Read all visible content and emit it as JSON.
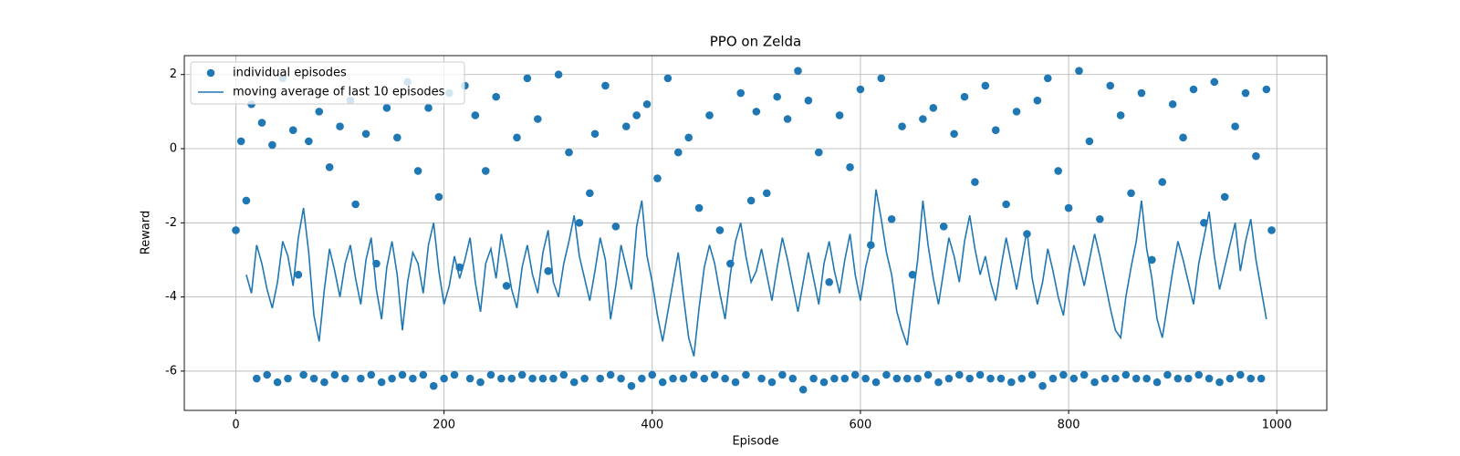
{
  "chart_data": {
    "type": "scatter",
    "title": "PPO on Zelda",
    "x_label": "Episode",
    "y_label": "Reward",
    "xlim": [
      -49.5,
      1048
    ],
    "ylim": [
      -7.06,
      2.51
    ],
    "xticks": [
      0,
      200,
      400,
      600,
      800,
      1000
    ],
    "yticks": [
      -6,
      -4,
      -2,
      0,
      2
    ],
    "grid": true,
    "legend": "upper left",
    "series": [
      {
        "name": "individual episodes",
        "mark": "scatter",
        "color": "#1f77b4",
        "x": [
          0,
          5,
          10,
          15,
          20,
          25,
          30,
          35,
          40,
          45,
          50,
          55,
          60,
          65,
          70,
          75,
          80,
          85,
          90,
          95,
          100,
          105,
          110,
          115,
          120,
          125,
          130,
          135,
          140,
          145,
          150,
          155,
          160,
          165,
          170,
          175,
          180,
          185,
          190,
          195,
          200,
          205,
          210,
          215,
          220,
          225,
          230,
          235,
          240,
          245,
          250,
          255,
          260,
          265,
          270,
          275,
          280,
          285,
          290,
          295,
          300,
          305,
          310,
          315,
          320,
          325,
          330,
          335,
          340,
          345,
          350,
          355,
          360,
          365,
          370,
          375,
          380,
          385,
          390,
          395,
          400,
          405,
          410,
          415,
          420,
          425,
          430,
          435,
          440,
          445,
          450,
          455,
          460,
          465,
          470,
          475,
          480,
          485,
          490,
          495,
          500,
          505,
          510,
          515,
          520,
          525,
          530,
          535,
          540,
          545,
          550,
          555,
          560,
          565,
          570,
          575,
          580,
          585,
          590,
          595,
          600,
          605,
          610,
          615,
          620,
          625,
          630,
          635,
          640,
          645,
          650,
          655,
          660,
          665,
          670,
          675,
          680,
          685,
          690,
          695,
          700,
          705,
          710,
          715,
          720,
          725,
          730,
          735,
          740,
          745,
          750,
          755,
          760,
          765,
          770,
          775,
          780,
          785,
          790,
          795,
          800,
          805,
          810,
          815,
          820,
          825,
          830,
          835,
          840,
          845,
          850,
          855,
          860,
          865,
          870,
          875,
          880,
          885,
          890,
          895,
          900,
          905,
          910,
          915,
          920,
          925,
          930,
          935,
          940,
          945,
          950,
          955,
          960,
          965,
          970,
          975,
          980,
          985,
          990,
          995
        ],
        "values": [
          -2.2,
          0.2,
          -1.4,
          1.2,
          -6.2,
          0.7,
          -6.1,
          0.1,
          -6.3,
          1.9,
          -6.2,
          0.5,
          -3.4,
          -6.1,
          0.2,
          -6.2,
          1.0,
          -6.3,
          -0.5,
          -6.1,
          0.6,
          -6.2,
          1.3,
          -1.5,
          -6.2,
          0.4,
          -6.1,
          -3.1,
          -6.3,
          1.1,
          -6.2,
          0.3,
          -6.1,
          1.8,
          -6.2,
          -0.6,
          -6.1,
          1.1,
          -6.4,
          -1.3,
          -6.2,
          1.5,
          -6.1,
          -3.2,
          1.7,
          -6.2,
          0.9,
          -6.3,
          -0.6,
          -6.1,
          1.4,
          -6.2,
          -3.7,
          -6.2,
          0.3,
          -6.1,
          1.9,
          -6.2,
          0.8,
          -6.2,
          -3.3,
          -6.2,
          2.0,
          -6.1,
          -0.1,
          -6.3,
          -2.0,
          -6.2,
          -1.2,
          0.4,
          -6.2,
          1.7,
          -6.1,
          -2.1,
          -6.2,
          0.6,
          -6.4,
          0.9,
          -6.2,
          1.2,
          -6.1,
          -0.8,
          -6.3,
          1.9,
          -6.2,
          -0.1,
          -6.2,
          0.3,
          -6.1,
          -1.6,
          -6.2,
          0.9,
          -6.1,
          -2.2,
          -6.2,
          -3.1,
          -6.3,
          1.5,
          -6.1,
          -1.4,
          1.0,
          -6.2,
          -1.2,
          -6.3,
          1.4,
          -6.1,
          0.8,
          -6.2,
          2.1,
          -6.5,
          1.3,
          -6.2,
          -0.1,
          -6.3,
          -3.6,
          -6.2,
          0.9,
          -6.2,
          -0.5,
          -6.1,
          1.6,
          -6.2,
          -2.6,
          -6.3,
          1.9,
          -6.1,
          -1.9,
          -6.2,
          0.6,
          -6.2,
          -3.4,
          -6.2,
          0.8,
          -6.1,
          1.1,
          -6.3,
          -2.1,
          -6.2,
          0.4,
          -6.1,
          1.4,
          -6.2,
          -0.9,
          -6.1,
          1.7,
          -6.2,
          0.5,
          -6.2,
          -1.5,
          -6.3,
          1.0,
          -6.2,
          -2.3,
          -6.1,
          1.3,
          -6.4,
          1.9,
          -6.2,
          -0.6,
          -6.1,
          -1.6,
          -6.2,
          2.1,
          -6.1,
          0.2,
          -6.3,
          -1.9,
          -6.2,
          1.7,
          -6.2,
          0.9,
          -6.1,
          -1.2,
          -6.2,
          1.5,
          -6.2,
          -3.0,
          -6.3,
          -0.9,
          -6.1,
          1.2,
          -6.2,
          0.3,
          -6.2,
          1.6,
          -6.1,
          -2.0,
          -6.2,
          1.8,
          -6.3,
          -1.3,
          -6.2,
          0.6,
          -6.1,
          1.5,
          -6.2,
          -0.2,
          -6.2,
          1.6,
          -2.2
        ]
      },
      {
        "name": "moving average of last 10 episodes",
        "mark": "line",
        "color": "#1f77b4",
        "x": [
          10,
          15,
          20,
          25,
          30,
          35,
          40,
          45,
          50,
          55,
          60,
          65,
          70,
          75,
          80,
          85,
          90,
          95,
          100,
          105,
          110,
          115,
          120,
          125,
          130,
          135,
          140,
          145,
          150,
          155,
          160,
          165,
          170,
          175,
          180,
          185,
          190,
          195,
          200,
          205,
          210,
          215,
          220,
          225,
          230,
          235,
          240,
          245,
          250,
          255,
          260,
          265,
          270,
          275,
          280,
          285,
          290,
          295,
          300,
          305,
          310,
          315,
          320,
          325,
          330,
          335,
          340,
          345,
          350,
          355,
          360,
          365,
          370,
          375,
          380,
          385,
          390,
          395,
          400,
          405,
          410,
          415,
          420,
          425,
          430,
          435,
          440,
          445,
          450,
          455,
          460,
          465,
          470,
          475,
          480,
          485,
          490,
          495,
          500,
          505,
          510,
          515,
          520,
          525,
          530,
          535,
          540,
          545,
          550,
          555,
          560,
          565,
          570,
          575,
          580,
          585,
          590,
          595,
          600,
          605,
          610,
          615,
          620,
          625,
          630,
          635,
          640,
          645,
          650,
          655,
          660,
          665,
          670,
          675,
          680,
          685,
          690,
          695,
          700,
          705,
          710,
          715,
          720,
          725,
          730,
          735,
          740,
          745,
          750,
          755,
          760,
          765,
          770,
          775,
          780,
          785,
          790,
          795,
          800,
          805,
          810,
          815,
          820,
          825,
          830,
          835,
          840,
          845,
          850,
          855,
          860,
          865,
          870,
          875,
          880,
          885,
          890,
          895,
          900,
          905,
          910,
          915,
          920,
          925,
          930,
          935,
          940,
          945,
          950,
          955,
          960,
          965,
          970,
          975,
          980,
          985,
          990
        ],
        "values": [
          -3.4,
          -3.9,
          -2.6,
          -3.1,
          -3.8,
          -4.3,
          -3.6,
          -2.5,
          -2.9,
          -3.7,
          -2.4,
          -1.6,
          -2.8,
          -4.5,
          -5.2,
          -3.8,
          -2.7,
          -3.3,
          -4.0,
          -3.1,
          -2.6,
          -3.5,
          -4.2,
          -3.0,
          -2.4,
          -3.8,
          -4.6,
          -3.2,
          -2.5,
          -3.4,
          -4.9,
          -3.6,
          -2.8,
          -3.1,
          -3.9,
          -2.6,
          -2.0,
          -3.3,
          -4.2,
          -3.7,
          -2.9,
          -3.5,
          -3.0,
          -2.4,
          -3.6,
          -4.4,
          -3.1,
          -2.7,
          -3.5,
          -2.3,
          -3.0,
          -3.8,
          -4.3,
          -3.2,
          -2.6,
          -3.4,
          -3.9,
          -2.8,
          -2.2,
          -3.6,
          -4.0,
          -3.1,
          -2.5,
          -1.8,
          -2.9,
          -3.5,
          -4.1,
          -3.3,
          -2.4,
          -3.0,
          -4.6,
          -3.7,
          -2.6,
          -3.2,
          -3.8,
          -2.1,
          -1.4,
          -2.9,
          -3.6,
          -4.5,
          -5.2,
          -4.4,
          -3.6,
          -2.8,
          -4.0,
          -5.1,
          -5.6,
          -4.3,
          -3.2,
          -2.6,
          -3.1,
          -3.9,
          -4.6,
          -3.4,
          -2.5,
          -2.0,
          -2.9,
          -3.6,
          -3.3,
          -2.7,
          -3.4,
          -4.1,
          -3.2,
          -2.4,
          -3.0,
          -3.7,
          -4.4,
          -3.6,
          -2.8,
          -3.5,
          -4.2,
          -3.1,
          -2.5,
          -3.3,
          -3.9,
          -3.0,
          -2.3,
          -3.4,
          -4.1,
          -3.2,
          -2.6,
          -1.1,
          -1.9,
          -2.8,
          -3.4,
          -4.4,
          -4.9,
          -5.3,
          -4.1,
          -3.0,
          -1.4,
          -2.6,
          -3.5,
          -4.2,
          -3.3,
          -2.4,
          -2.9,
          -3.6,
          -2.5,
          -1.8,
          -2.7,
          -3.4,
          -2.9,
          -3.6,
          -4.1,
          -3.2,
          -2.4,
          -3.1,
          -3.8,
          -3.0,
          -2.2,
          -3.5,
          -4.2,
          -3.6,
          -2.7,
          -3.3,
          -4.0,
          -4.5,
          -3.4,
          -2.6,
          -3.1,
          -3.7,
          -3.0,
          -2.3,
          -2.9,
          -3.6,
          -4.3,
          -4.9,
          -5.1,
          -4.0,
          -3.2,
          -2.5,
          -1.4,
          -2.7,
          -3.5,
          -4.6,
          -5.1,
          -4.2,
          -3.3,
          -2.5,
          -3.0,
          -3.6,
          -4.2,
          -3.1,
          -2.4,
          -1.7,
          -2.9,
          -3.8,
          -3.2,
          -2.6,
          -2.0,
          -3.3,
          -2.5,
          -1.9,
          -3.0,
          -3.8,
          -4.6
        ]
      }
    ]
  }
}
